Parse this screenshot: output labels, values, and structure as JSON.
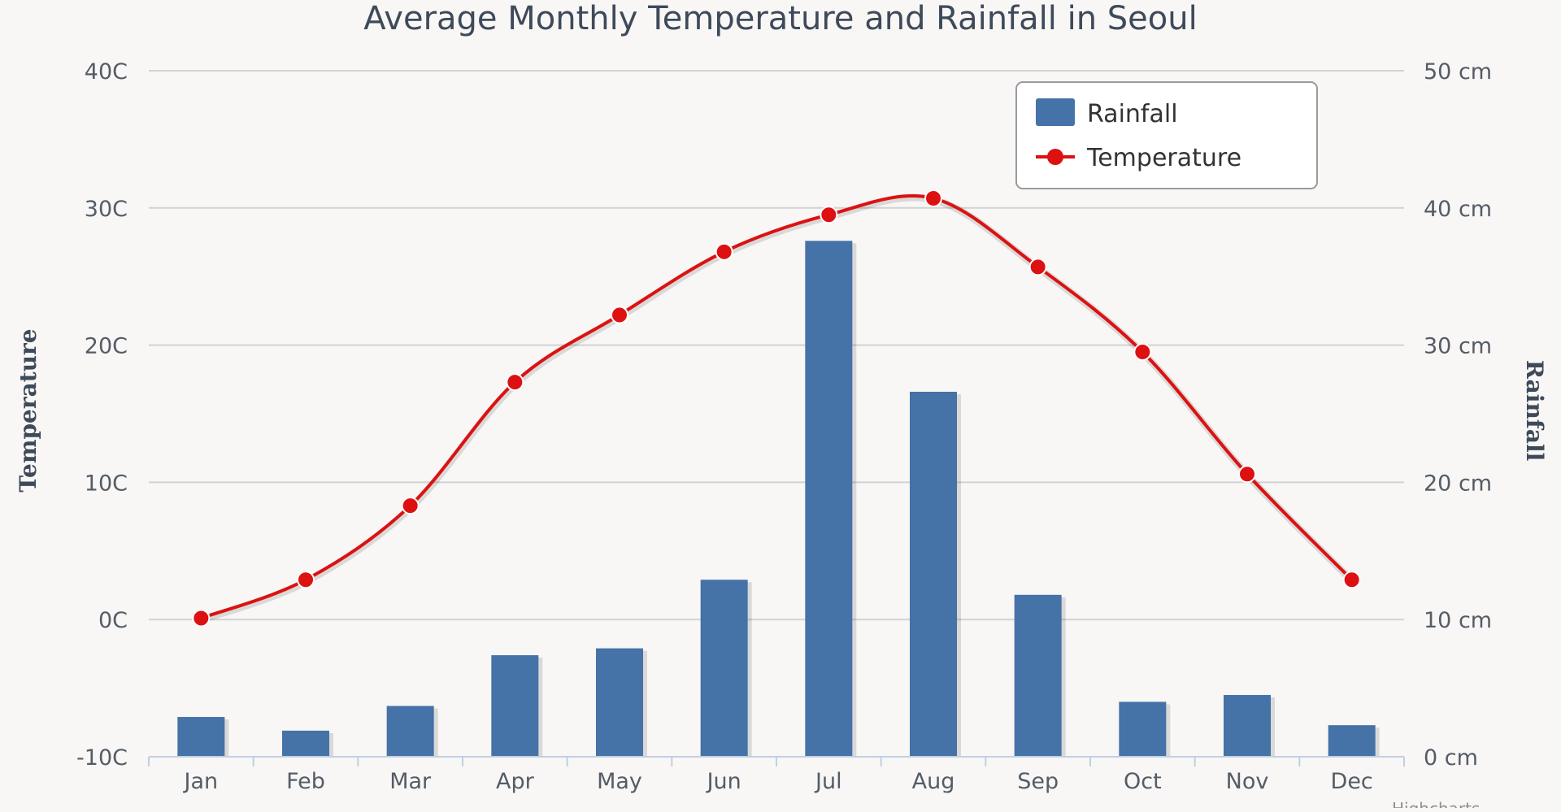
{
  "chart_data": {
    "type": "bar+line",
    "title": "Average Monthly Temperature and Rainfall in Seoul",
    "categories": [
      "Jan",
      "Feb",
      "Mar",
      "Apr",
      "May",
      "Jun",
      "Jul",
      "Aug",
      "Sep",
      "Oct",
      "Nov",
      "Dec"
    ],
    "series": [
      {
        "name": "Rainfall",
        "type": "bar",
        "axis": "right",
        "color": "#4572a7",
        "values": [
          2.9,
          1.9,
          3.7,
          7.4,
          7.9,
          12.9,
          37.6,
          26.6,
          11.8,
          4.0,
          4.5,
          2.3
        ]
      },
      {
        "name": "Temperature",
        "type": "line",
        "axis": "left",
        "color": "#dd1111",
        "values": [
          0.1,
          2.9,
          8.3,
          17.3,
          22.2,
          26.8,
          29.5,
          30.7,
          25.7,
          19.5,
          10.6,
          2.9
        ]
      }
    ],
    "y_left": {
      "label": "Temperature",
      "range": [
        -10,
        40
      ],
      "ticks": [
        -10,
        0,
        10,
        20,
        30,
        40
      ],
      "tick_labels": [
        "-10C",
        "0C",
        "10C",
        "20C",
        "30C",
        "40C"
      ]
    },
    "y_right": {
      "label": "Rainfall",
      "range": [
        0,
        50
      ],
      "ticks": [
        0,
        10,
        20,
        30,
        40,
        50
      ],
      "tick_labels": [
        "0 cm",
        "10 cm",
        "20 cm",
        "30 cm",
        "40 cm",
        "50 cm"
      ]
    },
    "grid": true,
    "legend": {
      "position": "top-right",
      "entries": [
        "Rainfall",
        "Temperature"
      ]
    },
    "credit": "Highcharts"
  }
}
